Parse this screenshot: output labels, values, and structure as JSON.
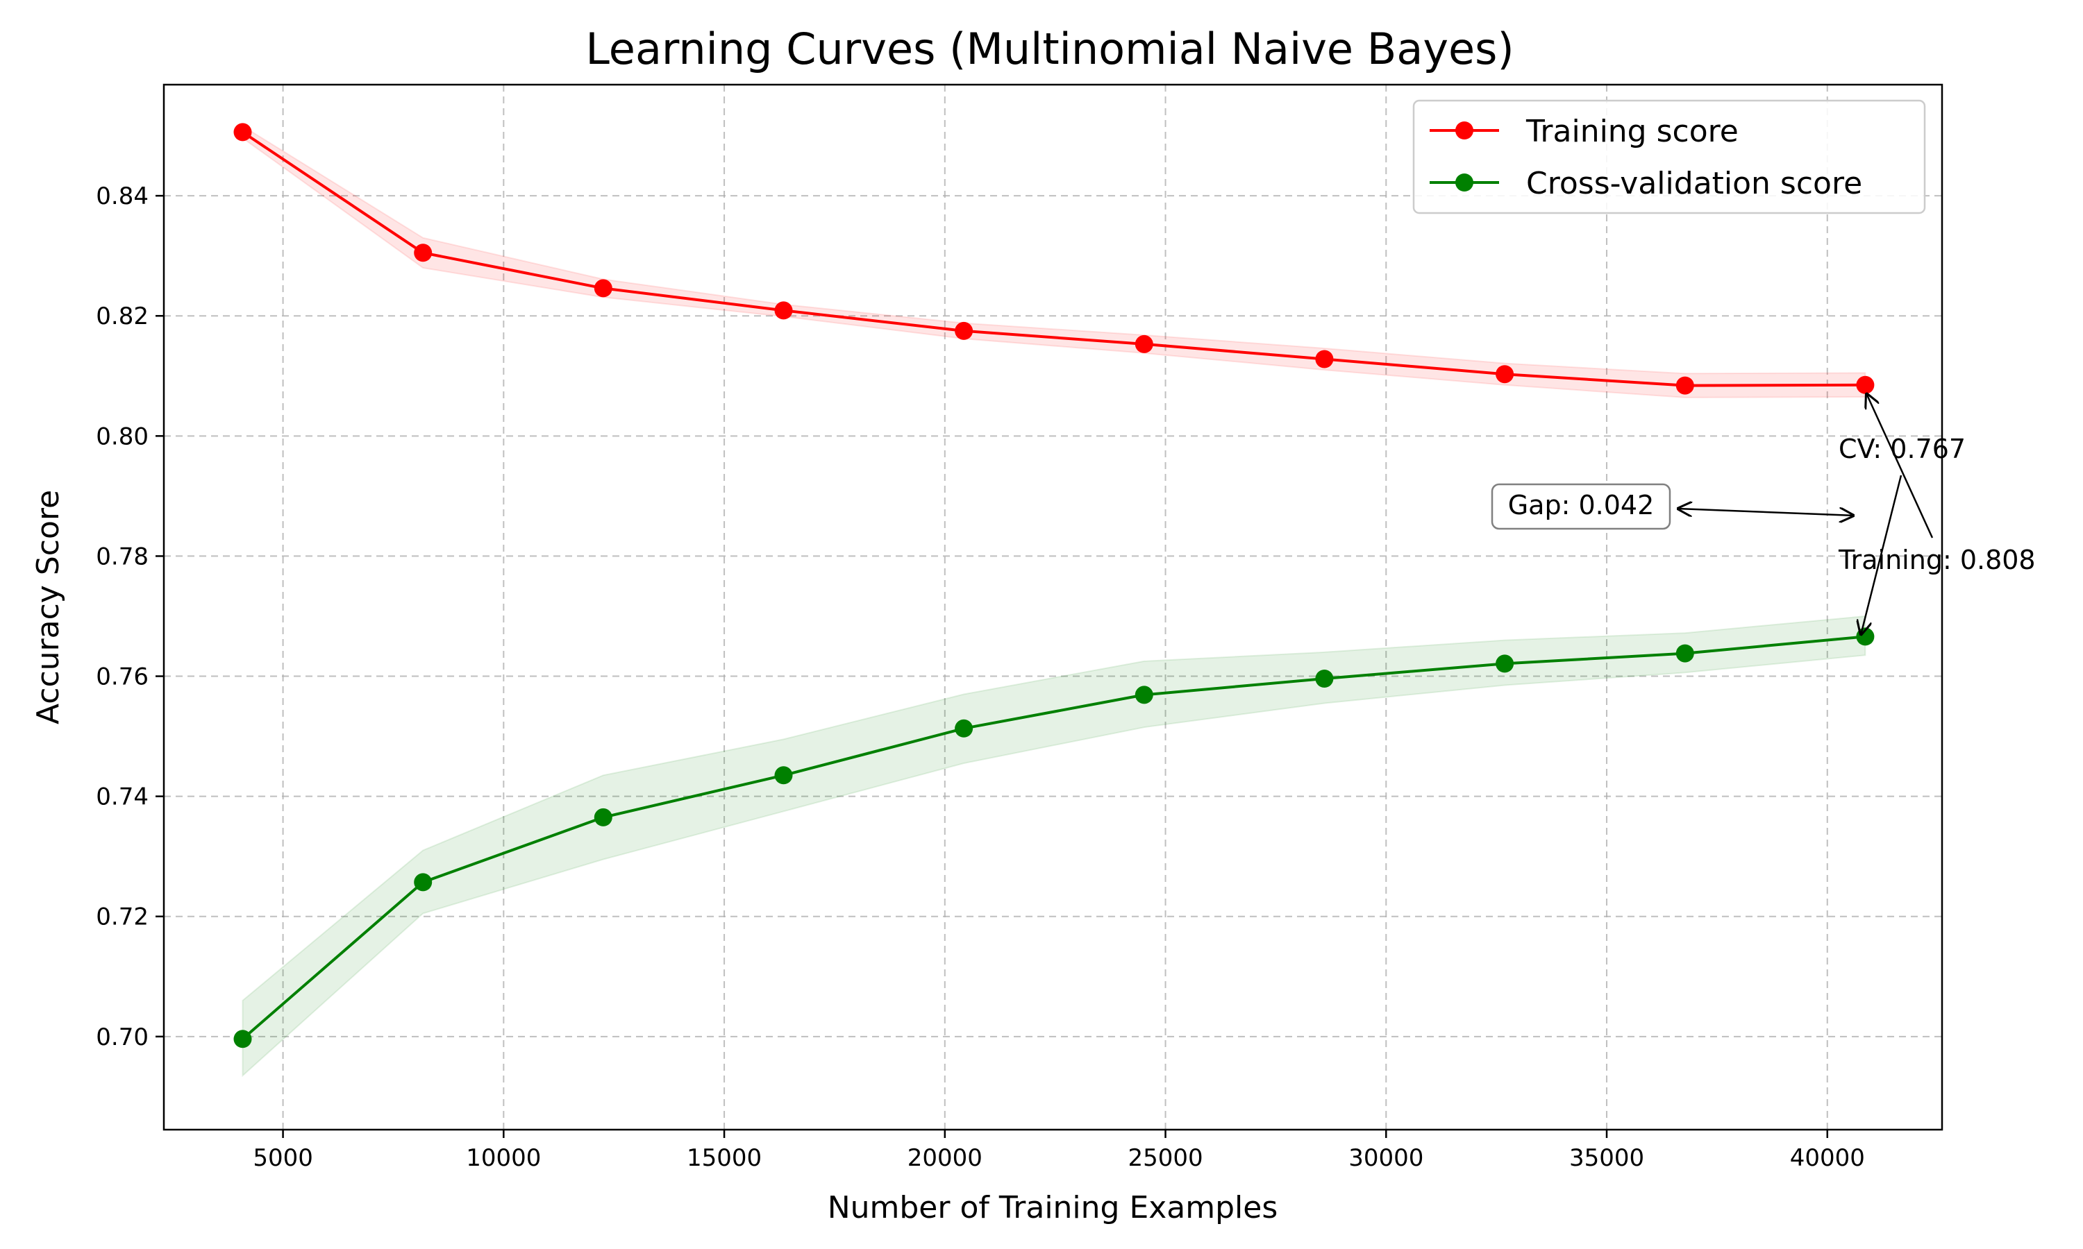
{
  "chart_data": {
    "type": "line",
    "title": "Learning Curves (Multinomial Naive Bayes)",
    "xlabel": "Number of Training Examples",
    "ylabel": "Accuracy Score",
    "xlim": [
      2300,
      42600
    ],
    "ylim": [
      0.6845,
      0.8585
    ],
    "xticks": [
      5000,
      10000,
      15000,
      20000,
      25000,
      30000,
      35000,
      40000
    ],
    "xtick_labels": [
      "5000",
      "10000",
      "15000",
      "20000",
      "25000",
      "30000",
      "35000",
      "40000"
    ],
    "yticks": [
      0.7,
      0.72,
      0.74,
      0.76,
      0.78,
      0.8,
      0.82,
      0.84
    ],
    "ytick_labels": [
      "0.70",
      "0.72",
      "0.74",
      "0.76",
      "0.78",
      "0.80",
      "0.82",
      "0.84"
    ],
    "grid": true,
    "legend_position": "top-right",
    "x": [
      4086,
      8172,
      12258,
      16344,
      20430,
      24516,
      28602,
      32688,
      36774,
      40860
    ],
    "series": [
      {
        "name": "Training score",
        "color": "#ff0000",
        "values": [
          0.8506,
          0.8305,
          0.8246,
          0.8209,
          0.8175,
          0.8153,
          0.8128,
          0.8103,
          0.8084,
          0.8085
        ],
        "band_lower": [
          0.8496,
          0.828,
          0.8231,
          0.8199,
          0.8162,
          0.8138,
          0.811,
          0.8085,
          0.8064,
          0.8065
        ],
        "band_upper": [
          0.8516,
          0.833,
          0.8261,
          0.8219,
          0.8188,
          0.8168,
          0.8146,
          0.8121,
          0.8104,
          0.8105
        ]
      },
      {
        "name": "Cross-validation score",
        "color": "#008000",
        "values": [
          0.6996,
          0.7257,
          0.7365,
          0.7435,
          0.7513,
          0.7569,
          0.7596,
          0.7621,
          0.7638,
          0.7666
        ],
        "band_lower": [
          0.6935,
          0.7205,
          0.7295,
          0.7375,
          0.7455,
          0.7515,
          0.7555,
          0.7585,
          0.7606,
          0.7635
        ],
        "band_upper": [
          0.706,
          0.731,
          0.7435,
          0.7495,
          0.757,
          0.7625,
          0.764,
          0.766,
          0.7672,
          0.77
        ]
      }
    ],
    "annotations": [
      {
        "text": "CV: 0.767",
        "target_x": 40860,
        "target_y": 0.7668
      },
      {
        "text": "Training: 0.808",
        "target_x": 40860,
        "target_y": 0.8083
      },
      {
        "text": "Gap: 0.042",
        "boxed": true,
        "arrow_to_x": 40860,
        "arrow_to_y": 0.7875
      }
    ]
  }
}
